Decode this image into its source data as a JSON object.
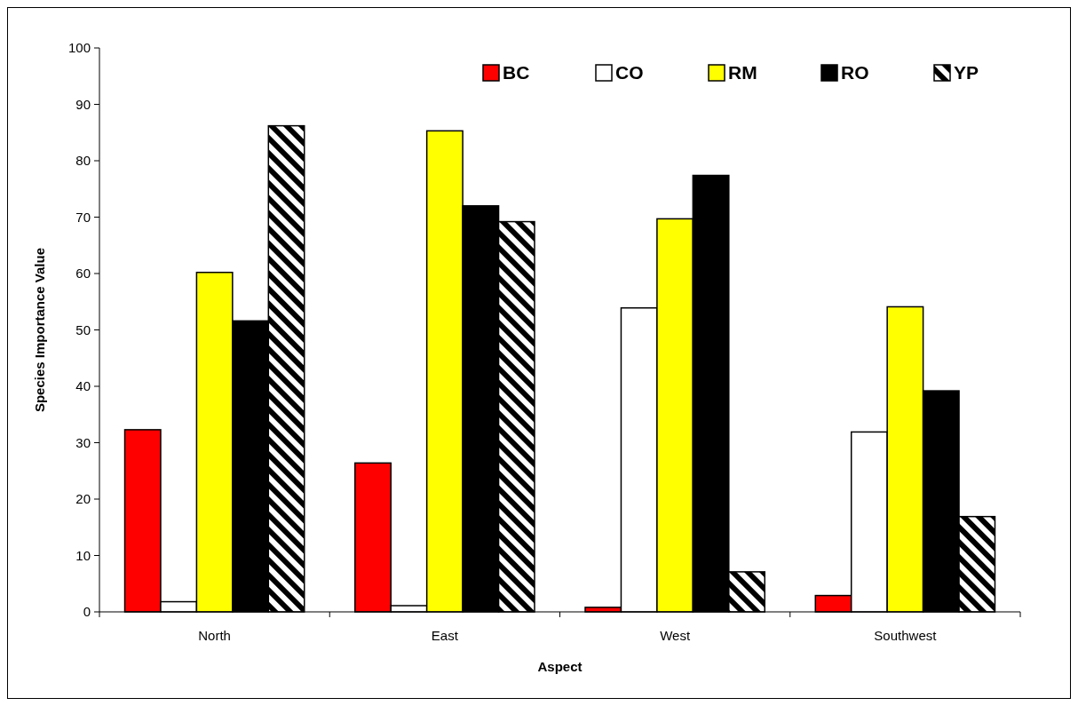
{
  "chart_data": {
    "type": "bar",
    "xlabel": "Aspect",
    "ylabel": "Species Importance Value",
    "categories": [
      "North",
      "East",
      "West",
      "Southwest"
    ],
    "series": [
      {
        "name": "BC",
        "color": "#ff0000",
        "values": [
          32.3,
          26.4,
          0.8,
          2.9
        ]
      },
      {
        "name": "CO",
        "color": "#ffffff",
        "values": [
          1.8,
          1.1,
          53.9,
          31.9
        ]
      },
      {
        "name": "RM",
        "color": "#ffff00",
        "values": [
          60.2,
          85.3,
          69.7,
          54.1
        ]
      },
      {
        "name": "RO",
        "color": "#000000",
        "values": [
          51.6,
          72.0,
          77.4,
          39.2
        ]
      },
      {
        "name": "YP",
        "color": "#000000",
        "values": [
          86.2,
          69.2,
          7.1,
          16.9
        ]
      }
    ],
    "ylim": [
      0,
      100
    ],
    "yticks": [
      0,
      10,
      20,
      30,
      40,
      50,
      60,
      70,
      80,
      90,
      100
    ],
    "grid": false,
    "legend": "top right"
  }
}
